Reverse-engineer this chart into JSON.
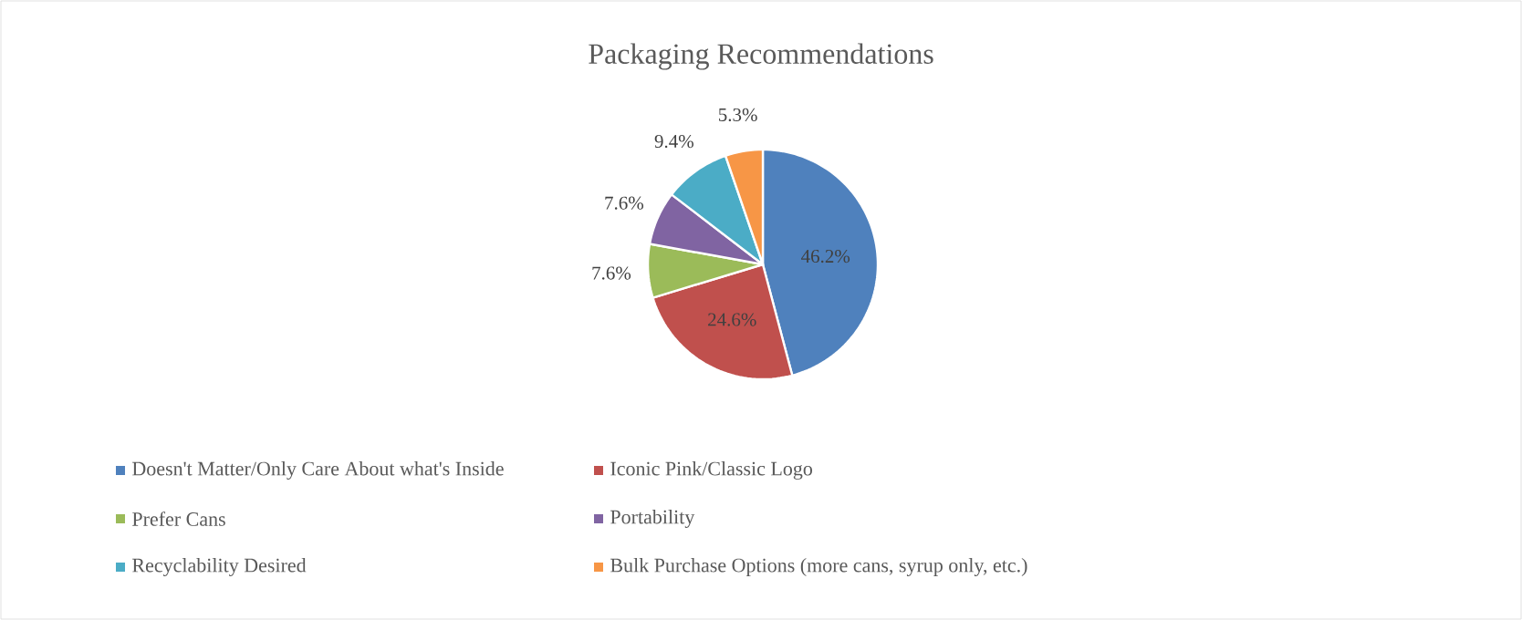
{
  "chart_data": {
    "type": "pie",
    "title": "Packaging Recommendations",
    "categories": [
      "Doesn't Matter/Only Care About what's Inside",
      "Iconic Pink/Classic Logo",
      "Prefer Cans",
      "Portability",
      "Recyclability Desired",
      "Bulk Purchase Options (more cans, syrup only, etc.)"
    ],
    "values": [
      46.2,
      24.6,
      7.6,
      7.6,
      9.4,
      5.3
    ],
    "value_labels": [
      "46.2%",
      "24.6%",
      "7.6%",
      "7.6%",
      "9.4%",
      "5.3%"
    ],
    "colors": [
      "#4f81bd",
      "#c0504d",
      "#9bbb59",
      "#8064a2",
      "#4bacc6",
      "#f79646"
    ],
    "legend": "bottom"
  }
}
